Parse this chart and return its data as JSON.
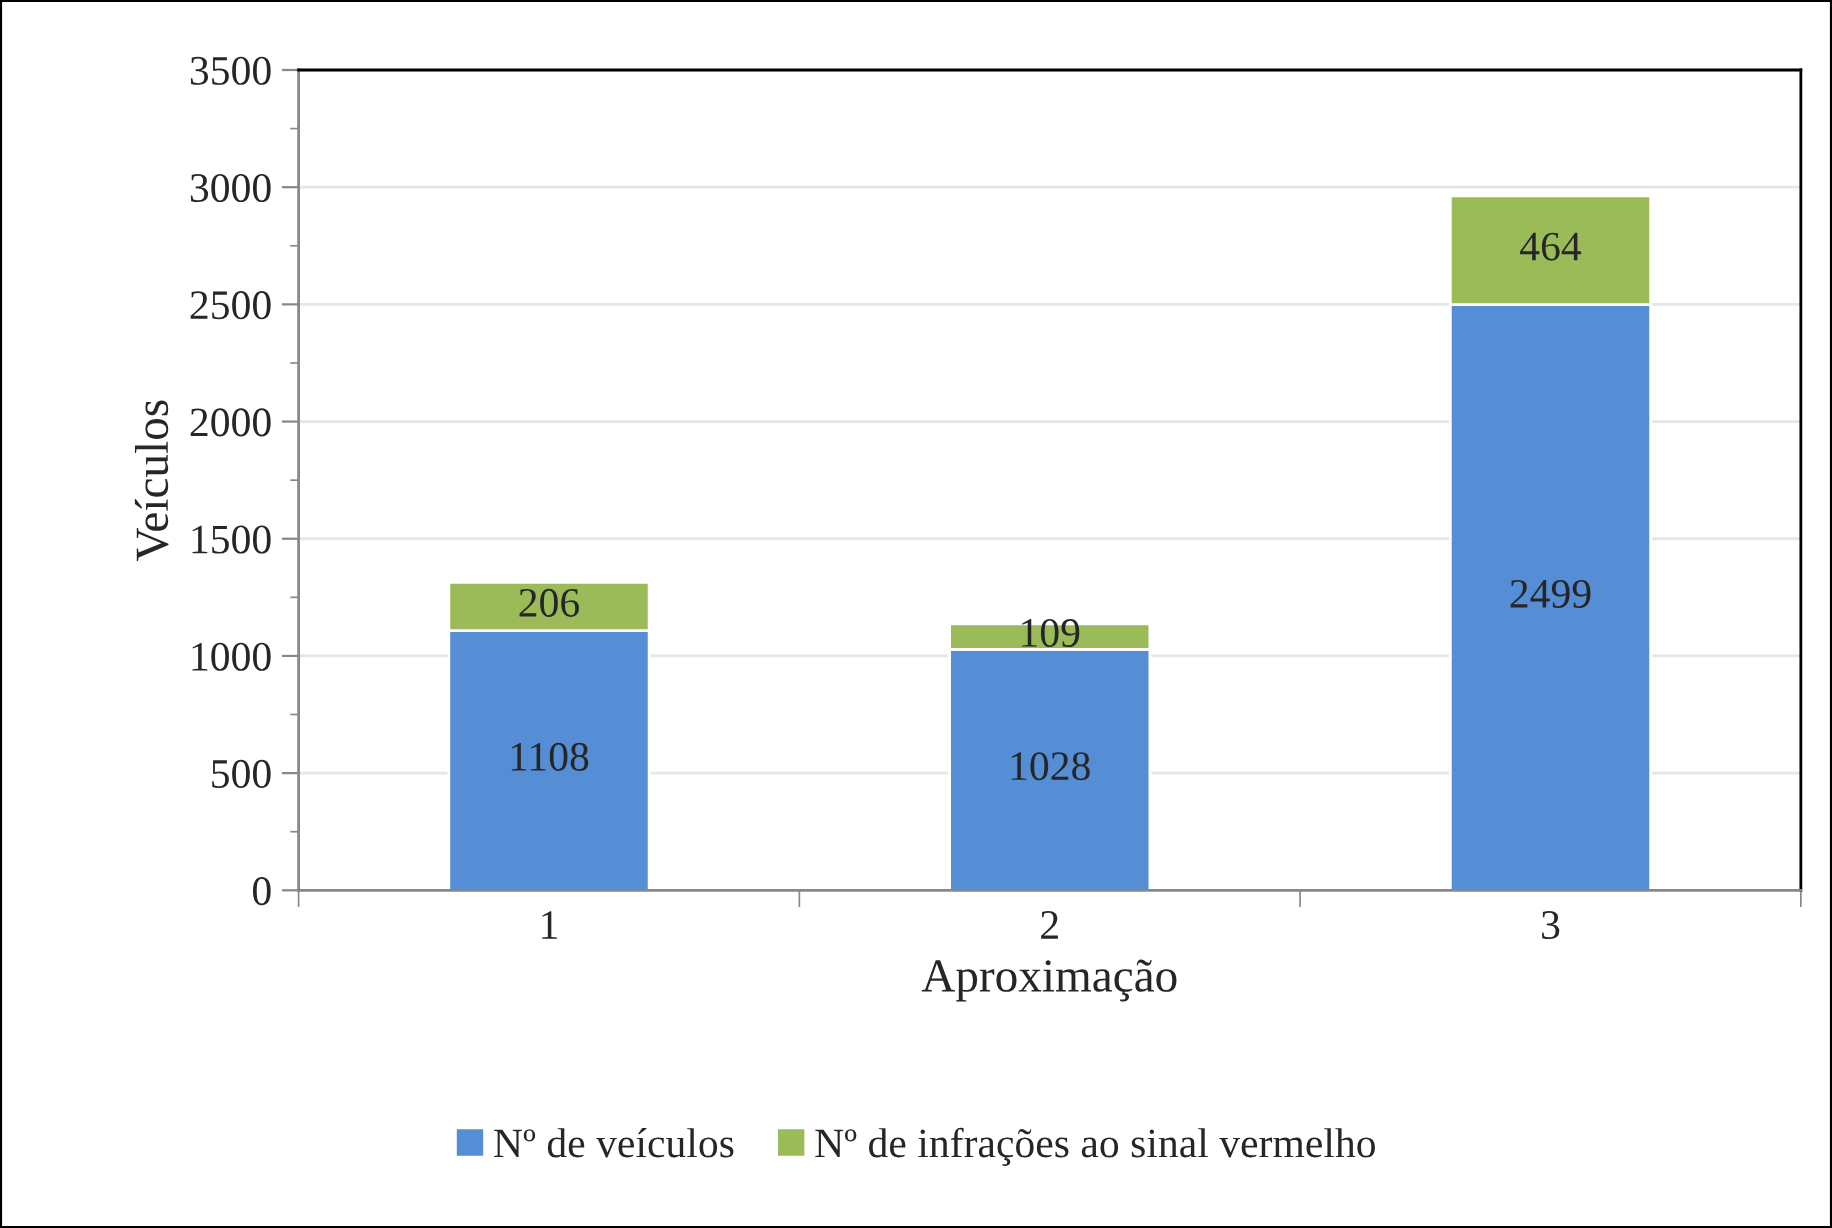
{
  "chart_data": {
    "type": "bar",
    "stacked": true,
    "xlabel": "Aproximação",
    "ylabel": "Veículos",
    "categories": [
      "1",
      "2",
      "3"
    ],
    "series": [
      {
        "name": "Nº de veículos",
        "color": "#558ed5",
        "values": [
          1108,
          1028,
          2499
        ]
      },
      {
        "name": "Nº de infrações ao sinal vermelho",
        "color": "#9bbb59",
        "values": [
          206,
          109,
          464
        ]
      }
    ],
    "data_labels": true,
    "ylim": [
      0,
      3500
    ],
    "yticks": [
      0,
      500,
      1000,
      1500,
      2000,
      2500,
      3000,
      3500
    ],
    "grid": "y",
    "legend": "bottom"
  }
}
